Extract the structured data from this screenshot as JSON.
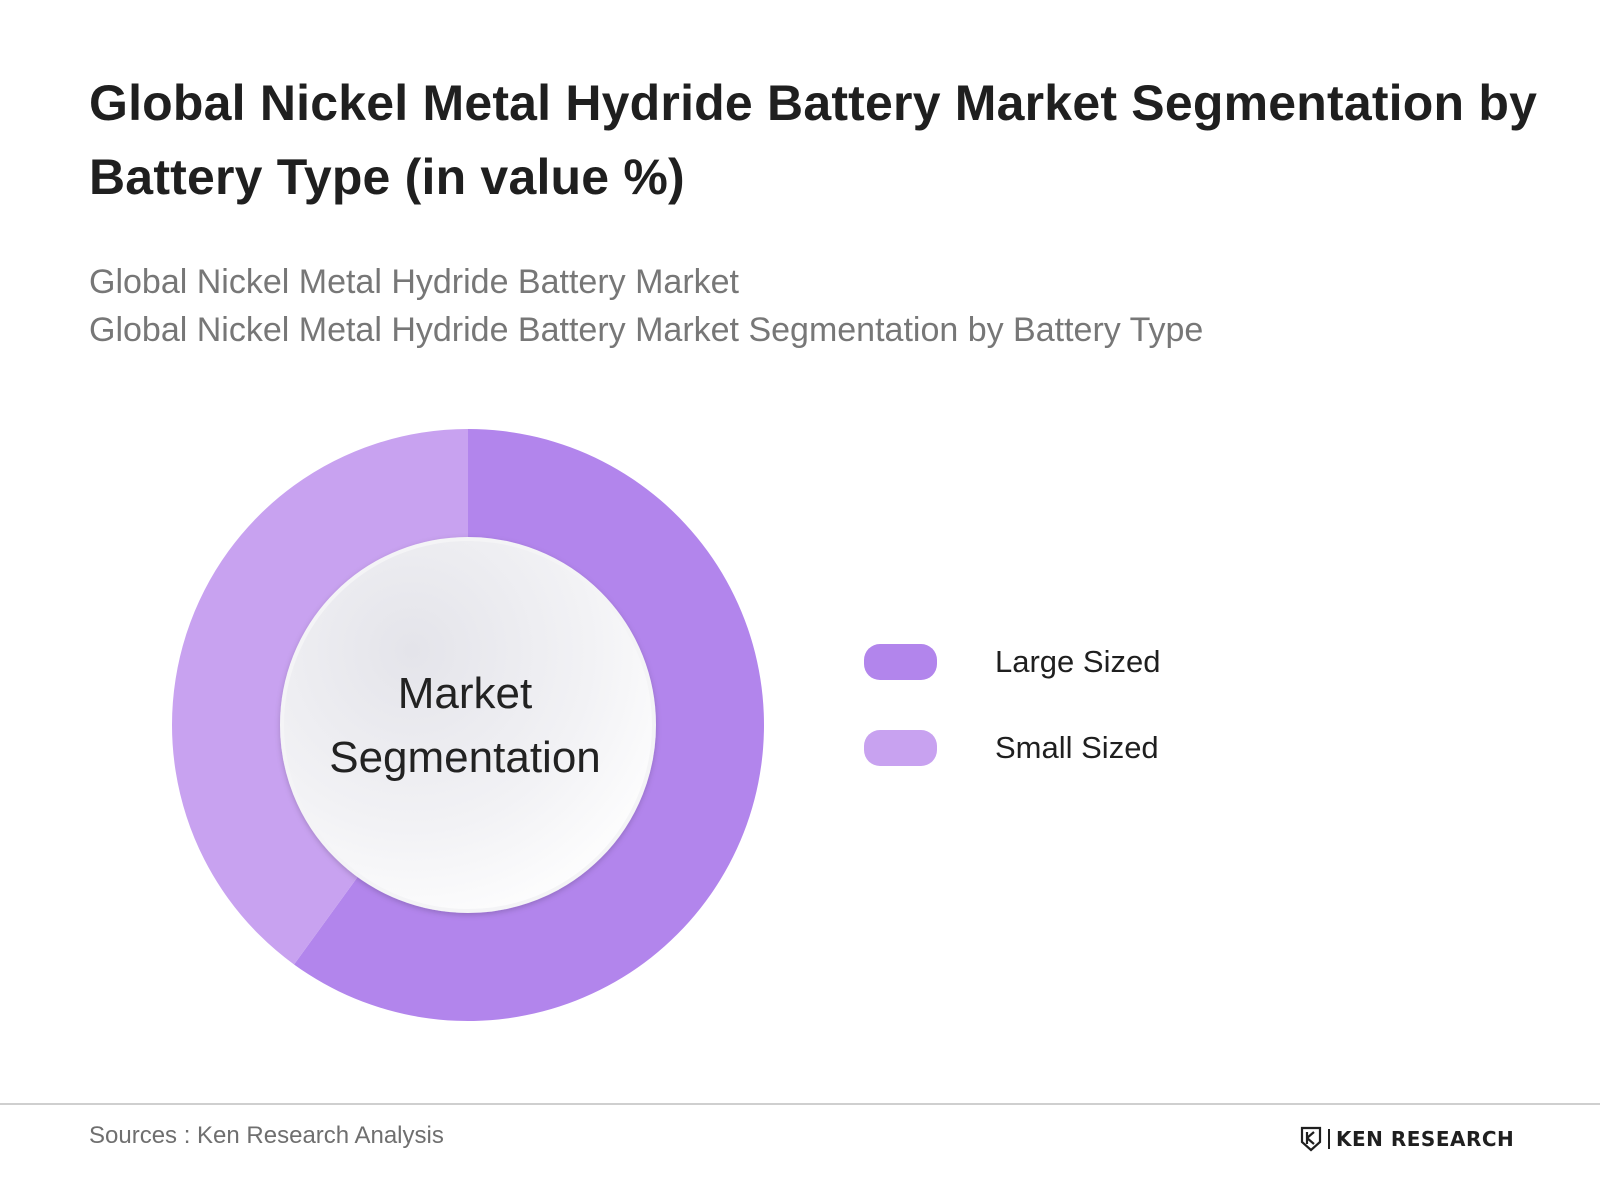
{
  "header": {
    "title": "Global Nickel Metal Hydride Battery Market Segmentation by Battery Type (in value %)",
    "subtitle_line1": "Global Nickel Metal Hydride Battery Market",
    "subtitle_line2": "Global Nickel Metal Hydride Battery Market Segmentation by Battery Type"
  },
  "chart_data": {
    "type": "pie",
    "variant": "donut",
    "title": "Global Nickel Metal Hydride Battery Market Segmentation by Battery Type (in value %)",
    "center_label_line1": "Market",
    "center_label_line2": "Segmentation",
    "categories": [
      "Large Sized",
      "Small Sized"
    ],
    "values": [
      60,
      40
    ],
    "colors": [
      "#b285ec",
      "#c8a2f0"
    ],
    "legend_position": "right"
  },
  "legend": {
    "items": [
      {
        "label": "Large Sized",
        "color": "#b285ec"
      },
      {
        "label": "Small Sized",
        "color": "#c8a2f0"
      }
    ]
  },
  "footer": {
    "source": "Sources : Ken Research Analysis",
    "brand": "KEN RESEARCH"
  }
}
